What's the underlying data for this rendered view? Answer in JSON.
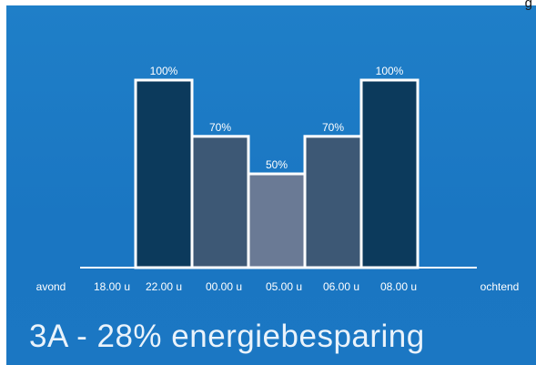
{
  "corner_text": "g",
  "chart_data": {
    "type": "bar",
    "title": "",
    "categories": [
      "22.00 u",
      "00.00 u",
      "05.00 u",
      "06.00 u",
      "08.00 u"
    ],
    "values": [
      100,
      70,
      50,
      70,
      100
    ],
    "value_labels": [
      "100%",
      "70%",
      "50%",
      "70%",
      "100%"
    ],
    "colors": [
      "#0c3a5c",
      "#3d5875",
      "#6a7a95",
      "#3d5875",
      "#0c3a5c"
    ],
    "ylim": [
      0,
      100
    ],
    "x_ticks": [
      "avond",
      "18.00 u",
      "22.00 u",
      "00.00 u",
      "05.00 u",
      "06.00 u",
      "08.00 u",
      "ochtend"
    ],
    "grid": false,
    "legend": "none"
  },
  "caption": "3A - 28% energiebesparing"
}
